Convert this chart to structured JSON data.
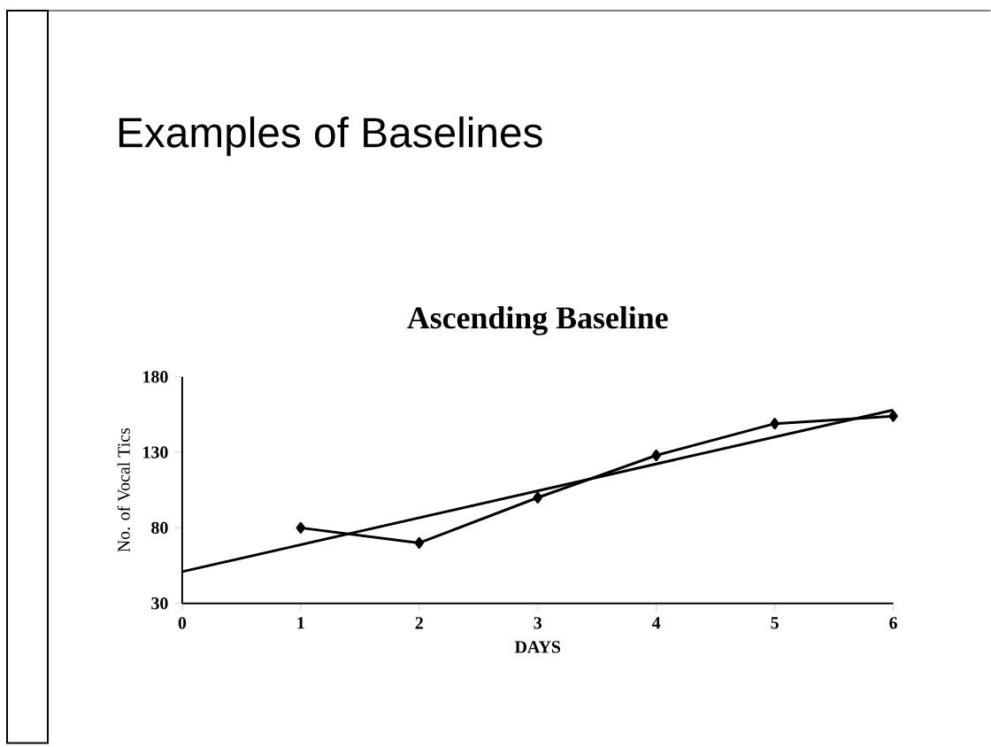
{
  "chart_data": {
    "type": "line",
    "title": "Examples of Baselines",
    "subtitle": "Ascending Baseline",
    "xlabel": "DAYS",
    "ylabel": "No. of Vocal Tics",
    "xlim": [
      0,
      6
    ],
    "xticks": [
      0,
      1,
      2,
      3,
      4,
      5,
      6
    ],
    "ylim": [
      30,
      180
    ],
    "yticks": [
      30,
      80,
      130,
      180
    ],
    "grid": false,
    "series": [
      {
        "color": "#000000",
        "x": [
          1,
          2,
          3,
          4,
          5,
          6
        ],
        "values": [
          80,
          70,
          100,
          128,
          149,
          154
        ],
        "marker": "diamond"
      },
      {
        "color": "#000000",
        "x": [
          0,
          6
        ],
        "values": [
          51,
          158
        ],
        "marker": "none"
      }
    ]
  }
}
